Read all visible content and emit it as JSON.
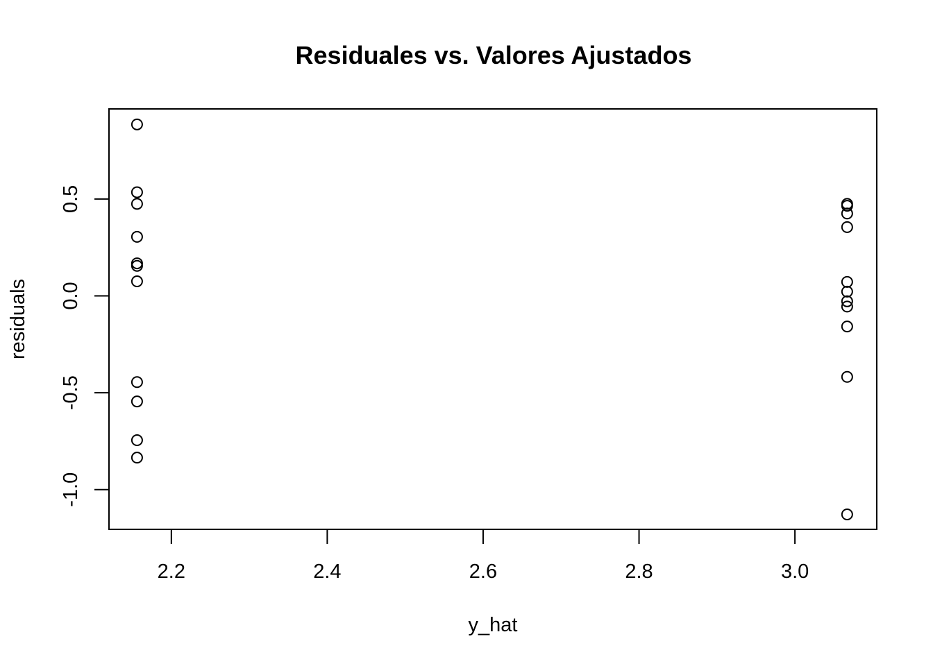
{
  "chart_data": {
    "type": "scatter",
    "title": "Residuales vs. Valores Ajustados",
    "xlabel": "y_hat",
    "ylabel": "residuals",
    "xlim": [
      2.12,
      3.105
    ],
    "ylim": [
      -1.205,
      0.965
    ],
    "x_ticks": [
      2.2,
      2.4,
      2.6,
      2.8,
      3.0
    ],
    "x_tick_labels": [
      "2.2",
      "2.4",
      "2.6",
      "2.8",
      "3.0"
    ],
    "y_ticks": [
      -1.0,
      -0.5,
      0.0,
      0.5
    ],
    "y_tick_labels": [
      "-1.0",
      "-0.5",
      "0.0",
      "0.5"
    ],
    "grid": false,
    "marker": "open-circle",
    "color": "#000000",
    "points": [
      {
        "x": 2.156,
        "y": 0.885
      },
      {
        "x": 2.156,
        "y": 0.535
      },
      {
        "x": 2.156,
        "y": 0.475
      },
      {
        "x": 2.156,
        "y": 0.305
      },
      {
        "x": 2.156,
        "y": 0.168
      },
      {
        "x": 2.156,
        "y": 0.155
      },
      {
        "x": 2.156,
        "y": 0.075
      },
      {
        "x": 2.156,
        "y": -0.445
      },
      {
        "x": 2.156,
        "y": -0.545
      },
      {
        "x": 2.156,
        "y": -0.745
      },
      {
        "x": 2.156,
        "y": -0.835
      },
      {
        "x": 3.067,
        "y": 0.475
      },
      {
        "x": 3.067,
        "y": 0.465
      },
      {
        "x": 3.067,
        "y": 0.425
      },
      {
        "x": 3.067,
        "y": 0.355
      },
      {
        "x": 3.067,
        "y": 0.072
      },
      {
        "x": 3.067,
        "y": 0.022
      },
      {
        "x": 3.067,
        "y": -0.028
      },
      {
        "x": 3.067,
        "y": -0.055
      },
      {
        "x": 3.067,
        "y": -0.158
      },
      {
        "x": 3.067,
        "y": -0.418
      },
      {
        "x": 3.067,
        "y": -1.128
      }
    ]
  }
}
